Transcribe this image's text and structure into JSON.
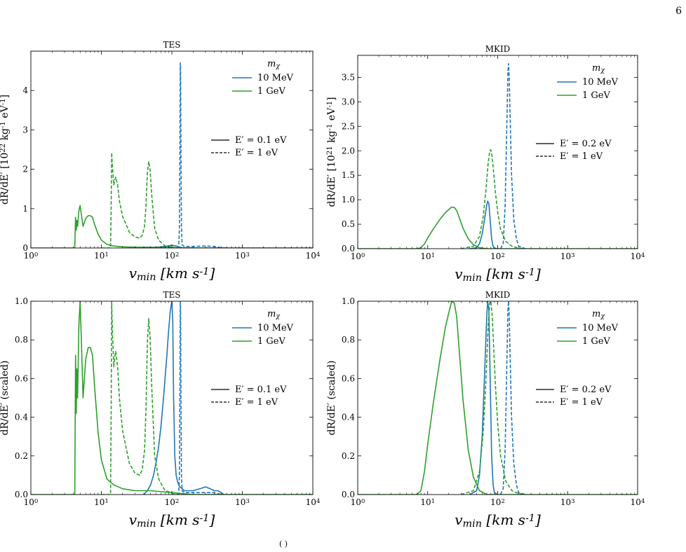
{
  "page_number": "6",
  "bottom_fragment": "( )",
  "colors": {
    "blue": "#1f77b4",
    "green": "#2ca02c"
  },
  "chart_data": [
    {
      "type": "line",
      "title": "TES",
      "xlabel": "v_min [km s^-1]",
      "ylabel": "dR/dE′ [10^22 kg^-1 eV^-1]",
      "xscale": "log",
      "xlim": [
        1,
        10000
      ],
      "ylim": [
        0,
        5.0
      ],
      "yticks": [
        0,
        1,
        2,
        3,
        4
      ],
      "xtick_labels": [
        "10^0",
        "10^1",
        "10^2",
        "10^3",
        "10^4"
      ],
      "legend": {
        "title": "m_χ",
        "entries": [
          "10 MeV",
          "1 GeV"
        ],
        "placement": "top-right"
      },
      "legend2": {
        "entries": [
          "E′ = 0.1 eV",
          "E′ = 1 eV"
        ],
        "placement": "center-right"
      },
      "series": [
        {
          "name": "10 MeV, E′ = 0.1 eV",
          "color": "blue",
          "dash": "solid",
          "x": [
            40,
            60,
            80,
            100,
            115,
            130,
            140,
            150,
            200
          ],
          "y": [
            0,
            0.02,
            0.04,
            0.07,
            0.05,
            0.02,
            0.01,
            0,
            0
          ]
        },
        {
          "name": "10 MeV, E′ = 1 eV",
          "color": "blue",
          "dash": "dashed",
          "x": [
            100,
            125,
            128,
            130,
            131.5,
            133,
            135,
            137,
            140,
            150,
            200,
            300,
            400,
            500,
            600
          ],
          "y": [
            0,
            0,
            0.5,
            2.5,
            4.7,
            4.6,
            2.0,
            0.5,
            0.08,
            0.04,
            0.04,
            0.05,
            0.04,
            0.01,
            0
          ]
        },
        {
          "name": "1 GeV, E′ = 0.1 eV",
          "color": "green",
          "dash": "solid",
          "x": [
            1,
            4.2,
            4.3,
            4.4,
            4.5,
            4.6,
            4.8,
            5.0,
            5.2,
            5.5,
            6,
            6.5,
            7,
            7.5,
            8,
            9,
            10,
            12,
            15,
            20,
            30,
            50,
            100,
            200,
            10000
          ],
          "y": [
            0,
            0,
            0.78,
            0.45,
            0.7,
            0.55,
            0.95,
            1.08,
            0.85,
            0.55,
            0.75,
            0.82,
            0.82,
            0.78,
            0.6,
            0.35,
            0.2,
            0.09,
            0.05,
            0.03,
            0.02,
            0.02,
            0.01,
            0,
            0
          ]
        },
        {
          "name": "1 GeV, E′ = 1 eV",
          "color": "green",
          "dash": "dashed",
          "x": [
            10,
            13.5,
            13.8,
            14,
            14.2,
            15,
            15.5,
            16,
            17,
            18,
            20,
            25,
            30,
            35,
            38,
            41,
            43,
            45,
            47,
            49,
            52,
            57,
            65,
            80,
            110,
            200,
            400,
            10000
          ],
          "y": [
            0,
            0,
            1.2,
            2.42,
            2.2,
            1.6,
            1.72,
            1.8,
            1.6,
            1.2,
            0.8,
            0.4,
            0.28,
            0.25,
            0.32,
            0.55,
            1.1,
            1.9,
            2.2,
            2.0,
            1.3,
            0.5,
            0.2,
            0.05,
            0.01,
            0,
            0,
            0
          ]
        }
      ]
    },
    {
      "type": "line",
      "title": "MKID",
      "xlabel": "v_min [km s^-1]",
      "ylabel": "dR/dE′ [10^21 kg^-1 eV^-1]",
      "xscale": "log",
      "xlim": [
        1,
        10000
      ],
      "ylim": [
        0,
        3.95
      ],
      "yticks": [
        0.0,
        0.5,
        1.0,
        1.5,
        2.0,
        2.5,
        3.0,
        3.5
      ],
      "xtick_labels": [
        "10^0",
        "10^1",
        "10^2",
        "10^3",
        "10^4"
      ],
      "legend": {
        "title": "m_χ",
        "entries": [
          "10 MeV",
          "1 GeV"
        ],
        "placement": "top-right"
      },
      "legend2": {
        "entries": [
          "E′ = 0.2 eV",
          "E′ = 1 eV"
        ],
        "placement": "center-right"
      },
      "series": [
        {
          "name": "10 MeV, E′ = 0.2 eV",
          "color": "blue",
          "dash": "solid",
          "x": [
            40,
            50,
            55,
            60,
            65,
            70,
            72,
            75,
            78,
            82,
            86,
            90,
            100
          ],
          "y": [
            0,
            0.02,
            0.1,
            0.3,
            0.6,
            0.9,
            0.97,
            0.92,
            0.6,
            0.2,
            0.05,
            0.01,
            0
          ]
        },
        {
          "name": "10 MeV, E′ = 1 eV",
          "color": "blue",
          "dash": "dashed",
          "x": [
            110,
            120,
            128,
            135,
            140,
            143,
            146,
            150,
            158,
            170,
            185,
            200,
            250
          ],
          "y": [
            0,
            0.1,
            0.9,
            2.5,
            3.6,
            3.78,
            3.5,
            2.8,
            1.5,
            0.6,
            0.2,
            0.05,
            0
          ]
        },
        {
          "name": "1 GeV, E′ = 0.2 eV",
          "color": "green",
          "dash": "solid",
          "x": [
            1,
            7,
            8,
            9,
            10,
            12,
            15,
            18,
            20,
            22,
            24,
            26,
            28,
            32,
            38,
            45,
            55,
            70,
            10000
          ],
          "y": [
            0,
            0,
            0.02,
            0.1,
            0.22,
            0.4,
            0.6,
            0.74,
            0.8,
            0.85,
            0.84,
            0.78,
            0.65,
            0.42,
            0.2,
            0.08,
            0.02,
            0,
            0
          ]
        },
        {
          "name": "1 GeV, E′ = 1 eV",
          "color": "green",
          "dash": "dashed",
          "x": [
            30,
            45,
            55,
            62,
            68,
            73,
            77,
            80,
            83,
            87,
            92,
            100,
            110,
            130,
            160,
            200,
            250
          ],
          "y": [
            0,
            0.05,
            0.25,
            0.65,
            1.2,
            1.75,
            2.0,
            2.02,
            1.9,
            1.6,
            1.2,
            0.75,
            0.4,
            0.15,
            0.05,
            0.01,
            0
          ]
        }
      ]
    },
    {
      "type": "line",
      "title": "TES",
      "xlabel": "v_min [km s^-1]",
      "ylabel": "dR/dE′ (scaled)",
      "xscale": "log",
      "xlim": [
        1,
        10000
      ],
      "ylim": [
        0,
        1.0
      ],
      "yticks": [
        0.0,
        0.2,
        0.4,
        0.6,
        0.8,
        1.0
      ],
      "xtick_labels": [
        "10^0",
        "10^1",
        "10^2",
        "10^3",
        "10^4"
      ],
      "legend": {
        "title": "m_χ",
        "entries": [
          "10 MeV",
          "1 GeV"
        ],
        "placement": "top-right"
      },
      "legend2": {
        "entries": [
          "E′ = 0.1 eV",
          "E′ = 1 eV"
        ],
        "placement": "center-right"
      },
      "series": [
        {
          "name": "10 MeV, E′ = 0.1 eV",
          "color": "blue",
          "dash": "solid",
          "x": [
            40,
            45,
            50,
            55,
            60,
            65,
            70,
            75,
            80,
            85,
            90,
            95,
            100,
            103,
            106,
            110,
            115,
            120,
            125,
            130,
            140,
            150,
            170,
            200,
            250,
            300,
            350,
            400,
            450,
            500,
            550
          ],
          "y": [
            0,
            0.02,
            0.05,
            0.1,
            0.17,
            0.25,
            0.35,
            0.47,
            0.6,
            0.72,
            0.85,
            0.95,
            1.0,
            0.9,
            0.5,
            0.2,
            0.1,
            0.07,
            0.05,
            0.04,
            0.03,
            0.02,
            0.02,
            0.02,
            0.03,
            0.04,
            0.03,
            0.02,
            0.02,
            0.01,
            0
          ]
        },
        {
          "name": "10 MeV, E′ = 1 eV",
          "color": "blue",
          "dash": "dashed",
          "x": [
            100,
            125,
            128,
            130,
            131.5,
            133,
            135,
            137,
            140,
            150,
            200,
            300,
            400,
            500,
            600
          ],
          "y": [
            0,
            0,
            0.1,
            0.55,
            1.0,
            0.98,
            0.43,
            0.1,
            0.02,
            0.01,
            0.01,
            0.01,
            0.01,
            0,
            0
          ]
        },
        {
          "name": "1 GeV, E′ = 0.1 eV",
          "color": "green",
          "dash": "solid",
          "x": [
            1,
            4.2,
            4.3,
            4.4,
            4.5,
            4.6,
            4.8,
            5.0,
            5.2,
            5.5,
            6,
            6.5,
            7,
            7.5,
            8,
            9,
            10,
            12,
            15,
            20,
            30,
            50,
            100,
            200,
            10000
          ],
          "y": [
            0,
            0,
            0.72,
            0.42,
            0.65,
            0.5,
            0.88,
            1.0,
            0.8,
            0.5,
            0.7,
            0.76,
            0.76,
            0.72,
            0.56,
            0.32,
            0.18,
            0.08,
            0.05,
            0.03,
            0.02,
            0.02,
            0.01,
            0,
            0
          ]
        },
        {
          "name": "1 GeV, E′ = 1 eV",
          "color": "green",
          "dash": "dashed",
          "x": [
            10,
            13.5,
            13.8,
            14,
            14.2,
            15,
            15.5,
            16,
            17,
            18,
            20,
            25,
            30,
            35,
            38,
            41,
            43,
            45,
            47,
            49,
            52,
            57,
            65,
            80,
            110,
            200,
            400,
            10000
          ],
          "y": [
            0,
            0,
            0.5,
            1.0,
            0.9,
            0.66,
            0.71,
            0.74,
            0.66,
            0.5,
            0.33,
            0.16,
            0.11,
            0.1,
            0.13,
            0.23,
            0.45,
            0.78,
            0.91,
            0.82,
            0.54,
            0.2,
            0.08,
            0.02,
            0.005,
            0,
            0,
            0
          ]
        }
      ]
    },
    {
      "type": "line",
      "title": "MKID",
      "xlabel": "v_min [km s^-1]",
      "ylabel": "dR/dE′ (scaled)",
      "xscale": "log",
      "xlim": [
        1,
        10000
      ],
      "ylim": [
        0,
        1.0
      ],
      "yticks": [
        0.0,
        0.2,
        0.4,
        0.6,
        0.8,
        1.0
      ],
      "xtick_labels": [
        "10^0",
        "10^1",
        "10^2",
        "10^3",
        "10^4"
      ],
      "legend": {
        "title": "m_χ",
        "entries": [
          "10 MeV",
          "1 GeV"
        ],
        "placement": "top-right"
      },
      "legend2": {
        "entries": [
          "E′ = 0.2 eV",
          "E′ = 1 eV"
        ],
        "placement": "center-right"
      },
      "series": [
        {
          "name": "10 MeV, E′ = 0.2 eV",
          "color": "blue",
          "dash": "solid",
          "x": [
            40,
            50,
            55,
            60,
            65,
            70,
            72,
            75,
            78,
            82,
            86,
            90,
            100
          ],
          "y": [
            0,
            0.02,
            0.1,
            0.3,
            0.62,
            0.93,
            1.0,
            0.95,
            0.62,
            0.2,
            0.05,
            0.01,
            0
          ]
        },
        {
          "name": "10 MeV, E′ = 1 eV",
          "color": "blue",
          "dash": "dashed",
          "x": [
            110,
            120,
            128,
            135,
            140,
            143,
            146,
            150,
            158,
            170,
            185,
            200,
            250
          ],
          "y": [
            0,
            0.03,
            0.24,
            0.66,
            0.95,
            1.0,
            0.93,
            0.74,
            0.4,
            0.16,
            0.05,
            0.01,
            0
          ]
        },
        {
          "name": "1 GeV, E′ = 0.2 eV",
          "color": "green",
          "dash": "solid",
          "x": [
            1,
            7,
            8,
            9,
            10,
            12,
            15,
            18,
            20,
            22,
            24,
            26,
            28,
            32,
            38,
            45,
            55,
            70,
            10000
          ],
          "y": [
            0,
            0,
            0.02,
            0.12,
            0.26,
            0.47,
            0.7,
            0.87,
            0.94,
            1.0,
            0.99,
            0.92,
            0.76,
            0.49,
            0.23,
            0.09,
            0.02,
            0,
            0
          ]
        },
        {
          "name": "1 GeV, E′ = 1 eV",
          "color": "green",
          "dash": "dashed",
          "x": [
            30,
            45,
            55,
            62,
            68,
            73,
            77,
            80,
            83,
            87,
            92,
            100,
            110,
            130,
            160,
            200,
            250
          ],
          "y": [
            0,
            0.02,
            0.12,
            0.32,
            0.59,
            0.87,
            0.99,
            1.0,
            0.94,
            0.79,
            0.59,
            0.37,
            0.2,
            0.07,
            0.02,
            0.005,
            0
          ]
        }
      ]
    }
  ]
}
